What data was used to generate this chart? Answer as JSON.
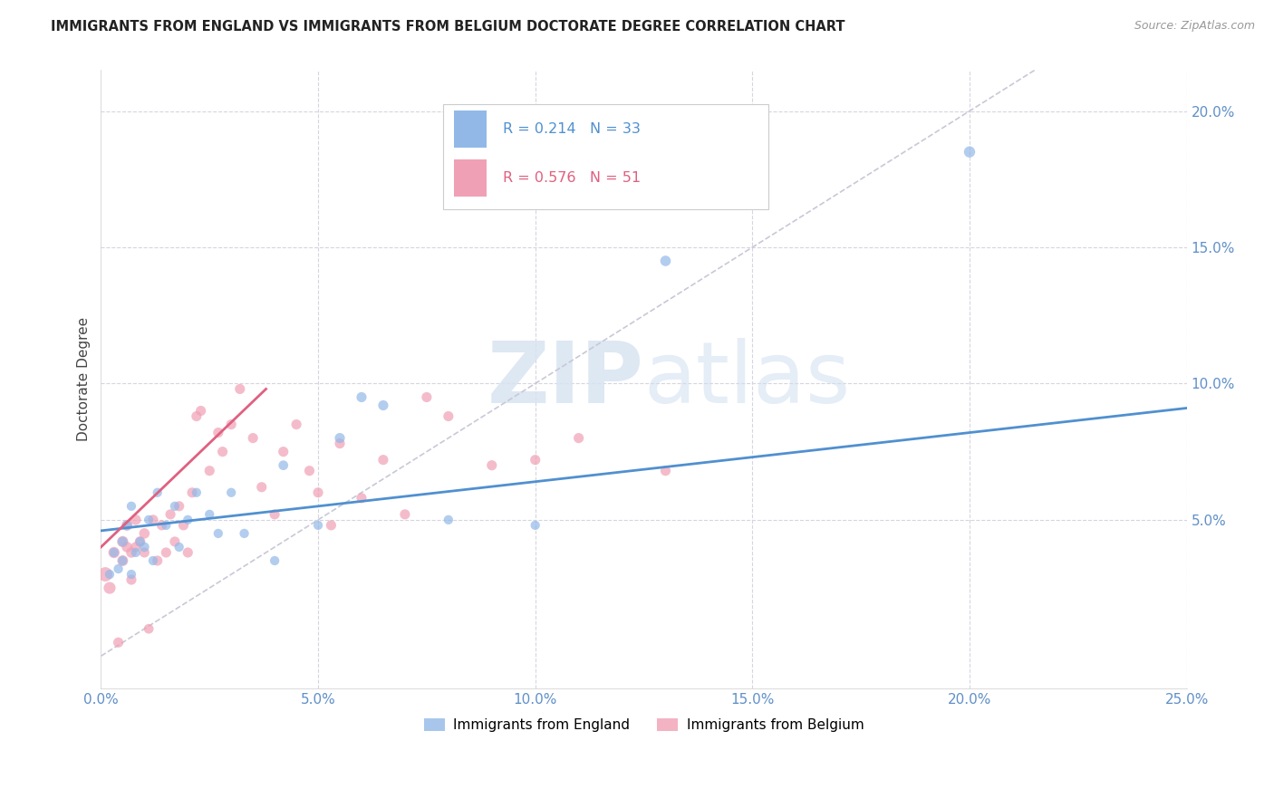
{
  "title": "IMMIGRANTS FROM ENGLAND VS IMMIGRANTS FROM BELGIUM DOCTORATE DEGREE CORRELATION CHART",
  "source": "Source: ZipAtlas.com",
  "ylabel": "Doctorate Degree",
  "ytick_labels": [
    "5.0%",
    "10.0%",
    "15.0%",
    "20.0%"
  ],
  "ytick_values": [
    0.05,
    0.1,
    0.15,
    0.2
  ],
  "xtick_values": [
    0.0,
    0.05,
    0.1,
    0.15,
    0.2,
    0.25
  ],
  "xtick_labels": [
    "0.0%",
    "5.0%",
    "10.0%",
    "15.0%",
    "20.0%",
    "25.0%"
  ],
  "xlim": [
    0.0,
    0.25
  ],
  "ylim": [
    -0.012,
    0.215
  ],
  "legend_england": "Immigrants from England",
  "legend_belgium": "Immigrants from Belgium",
  "R_england": "0.214",
  "N_england": "33",
  "R_belgium": "0.576",
  "N_belgium": "51",
  "color_england": "#92B8E8",
  "color_belgium": "#F0A0B5",
  "line_color_england": "#5090D0",
  "line_color_belgium": "#E06080",
  "diagonal_color": "#C8C8D8",
  "background_color": "#FFFFFF",
  "grid_color": "#D5D5E0",
  "title_color": "#222222",
  "axis_label_color": "#6090C8",
  "england_x": [
    0.002,
    0.003,
    0.004,
    0.005,
    0.005,
    0.006,
    0.007,
    0.007,
    0.008,
    0.009,
    0.01,
    0.011,
    0.012,
    0.013,
    0.015,
    0.017,
    0.018,
    0.02,
    0.022,
    0.025,
    0.027,
    0.03,
    0.033,
    0.04,
    0.042,
    0.05,
    0.055,
    0.06,
    0.065,
    0.08,
    0.1,
    0.13,
    0.2
  ],
  "england_y": [
    0.03,
    0.038,
    0.032,
    0.042,
    0.035,
    0.048,
    0.03,
    0.055,
    0.038,
    0.042,
    0.04,
    0.05,
    0.035,
    0.06,
    0.048,
    0.055,
    0.04,
    0.05,
    0.06,
    0.052,
    0.045,
    0.06,
    0.045,
    0.035,
    0.07,
    0.048,
    0.08,
    0.095,
    0.092,
    0.05,
    0.048,
    0.145,
    0.185
  ],
  "england_size": [
    55,
    55,
    55,
    60,
    55,
    60,
    55,
    55,
    55,
    55,
    60,
    55,
    55,
    55,
    55,
    55,
    55,
    55,
    55,
    55,
    55,
    55,
    55,
    55,
    60,
    55,
    65,
    65,
    65,
    55,
    55,
    70,
    80
  ],
  "belgium_x": [
    0.001,
    0.002,
    0.003,
    0.004,
    0.005,
    0.005,
    0.006,
    0.006,
    0.007,
    0.007,
    0.008,
    0.008,
    0.009,
    0.01,
    0.01,
    0.011,
    0.012,
    0.013,
    0.014,
    0.015,
    0.016,
    0.017,
    0.018,
    0.019,
    0.02,
    0.021,
    0.022,
    0.023,
    0.025,
    0.027,
    0.028,
    0.03,
    0.032,
    0.035,
    0.037,
    0.04,
    0.042,
    0.045,
    0.048,
    0.05,
    0.053,
    0.055,
    0.06,
    0.065,
    0.07,
    0.075,
    0.08,
    0.09,
    0.1,
    0.11,
    0.13
  ],
  "belgium_y": [
    0.03,
    0.025,
    0.038,
    0.005,
    0.042,
    0.035,
    0.048,
    0.04,
    0.038,
    0.028,
    0.05,
    0.04,
    0.042,
    0.045,
    0.038,
    0.01,
    0.05,
    0.035,
    0.048,
    0.038,
    0.052,
    0.042,
    0.055,
    0.048,
    0.038,
    0.06,
    0.088,
    0.09,
    0.068,
    0.082,
    0.075,
    0.085,
    0.098,
    0.08,
    0.062,
    0.052,
    0.075,
    0.085,
    0.068,
    0.06,
    0.048,
    0.078,
    0.058,
    0.072,
    0.052,
    0.095,
    0.088,
    0.07,
    0.072,
    0.08,
    0.068
  ],
  "belgium_size": [
    130,
    90,
    80,
    65,
    80,
    75,
    75,
    70,
    70,
    65,
    70,
    65,
    70,
    70,
    65,
    60,
    65,
    65,
    65,
    65,
    65,
    65,
    65,
    65,
    65,
    65,
    65,
    65,
    65,
    65,
    65,
    65,
    65,
    65,
    65,
    65,
    65,
    65,
    65,
    65,
    65,
    65,
    65,
    65,
    65,
    65,
    65,
    65,
    65,
    65,
    65
  ]
}
